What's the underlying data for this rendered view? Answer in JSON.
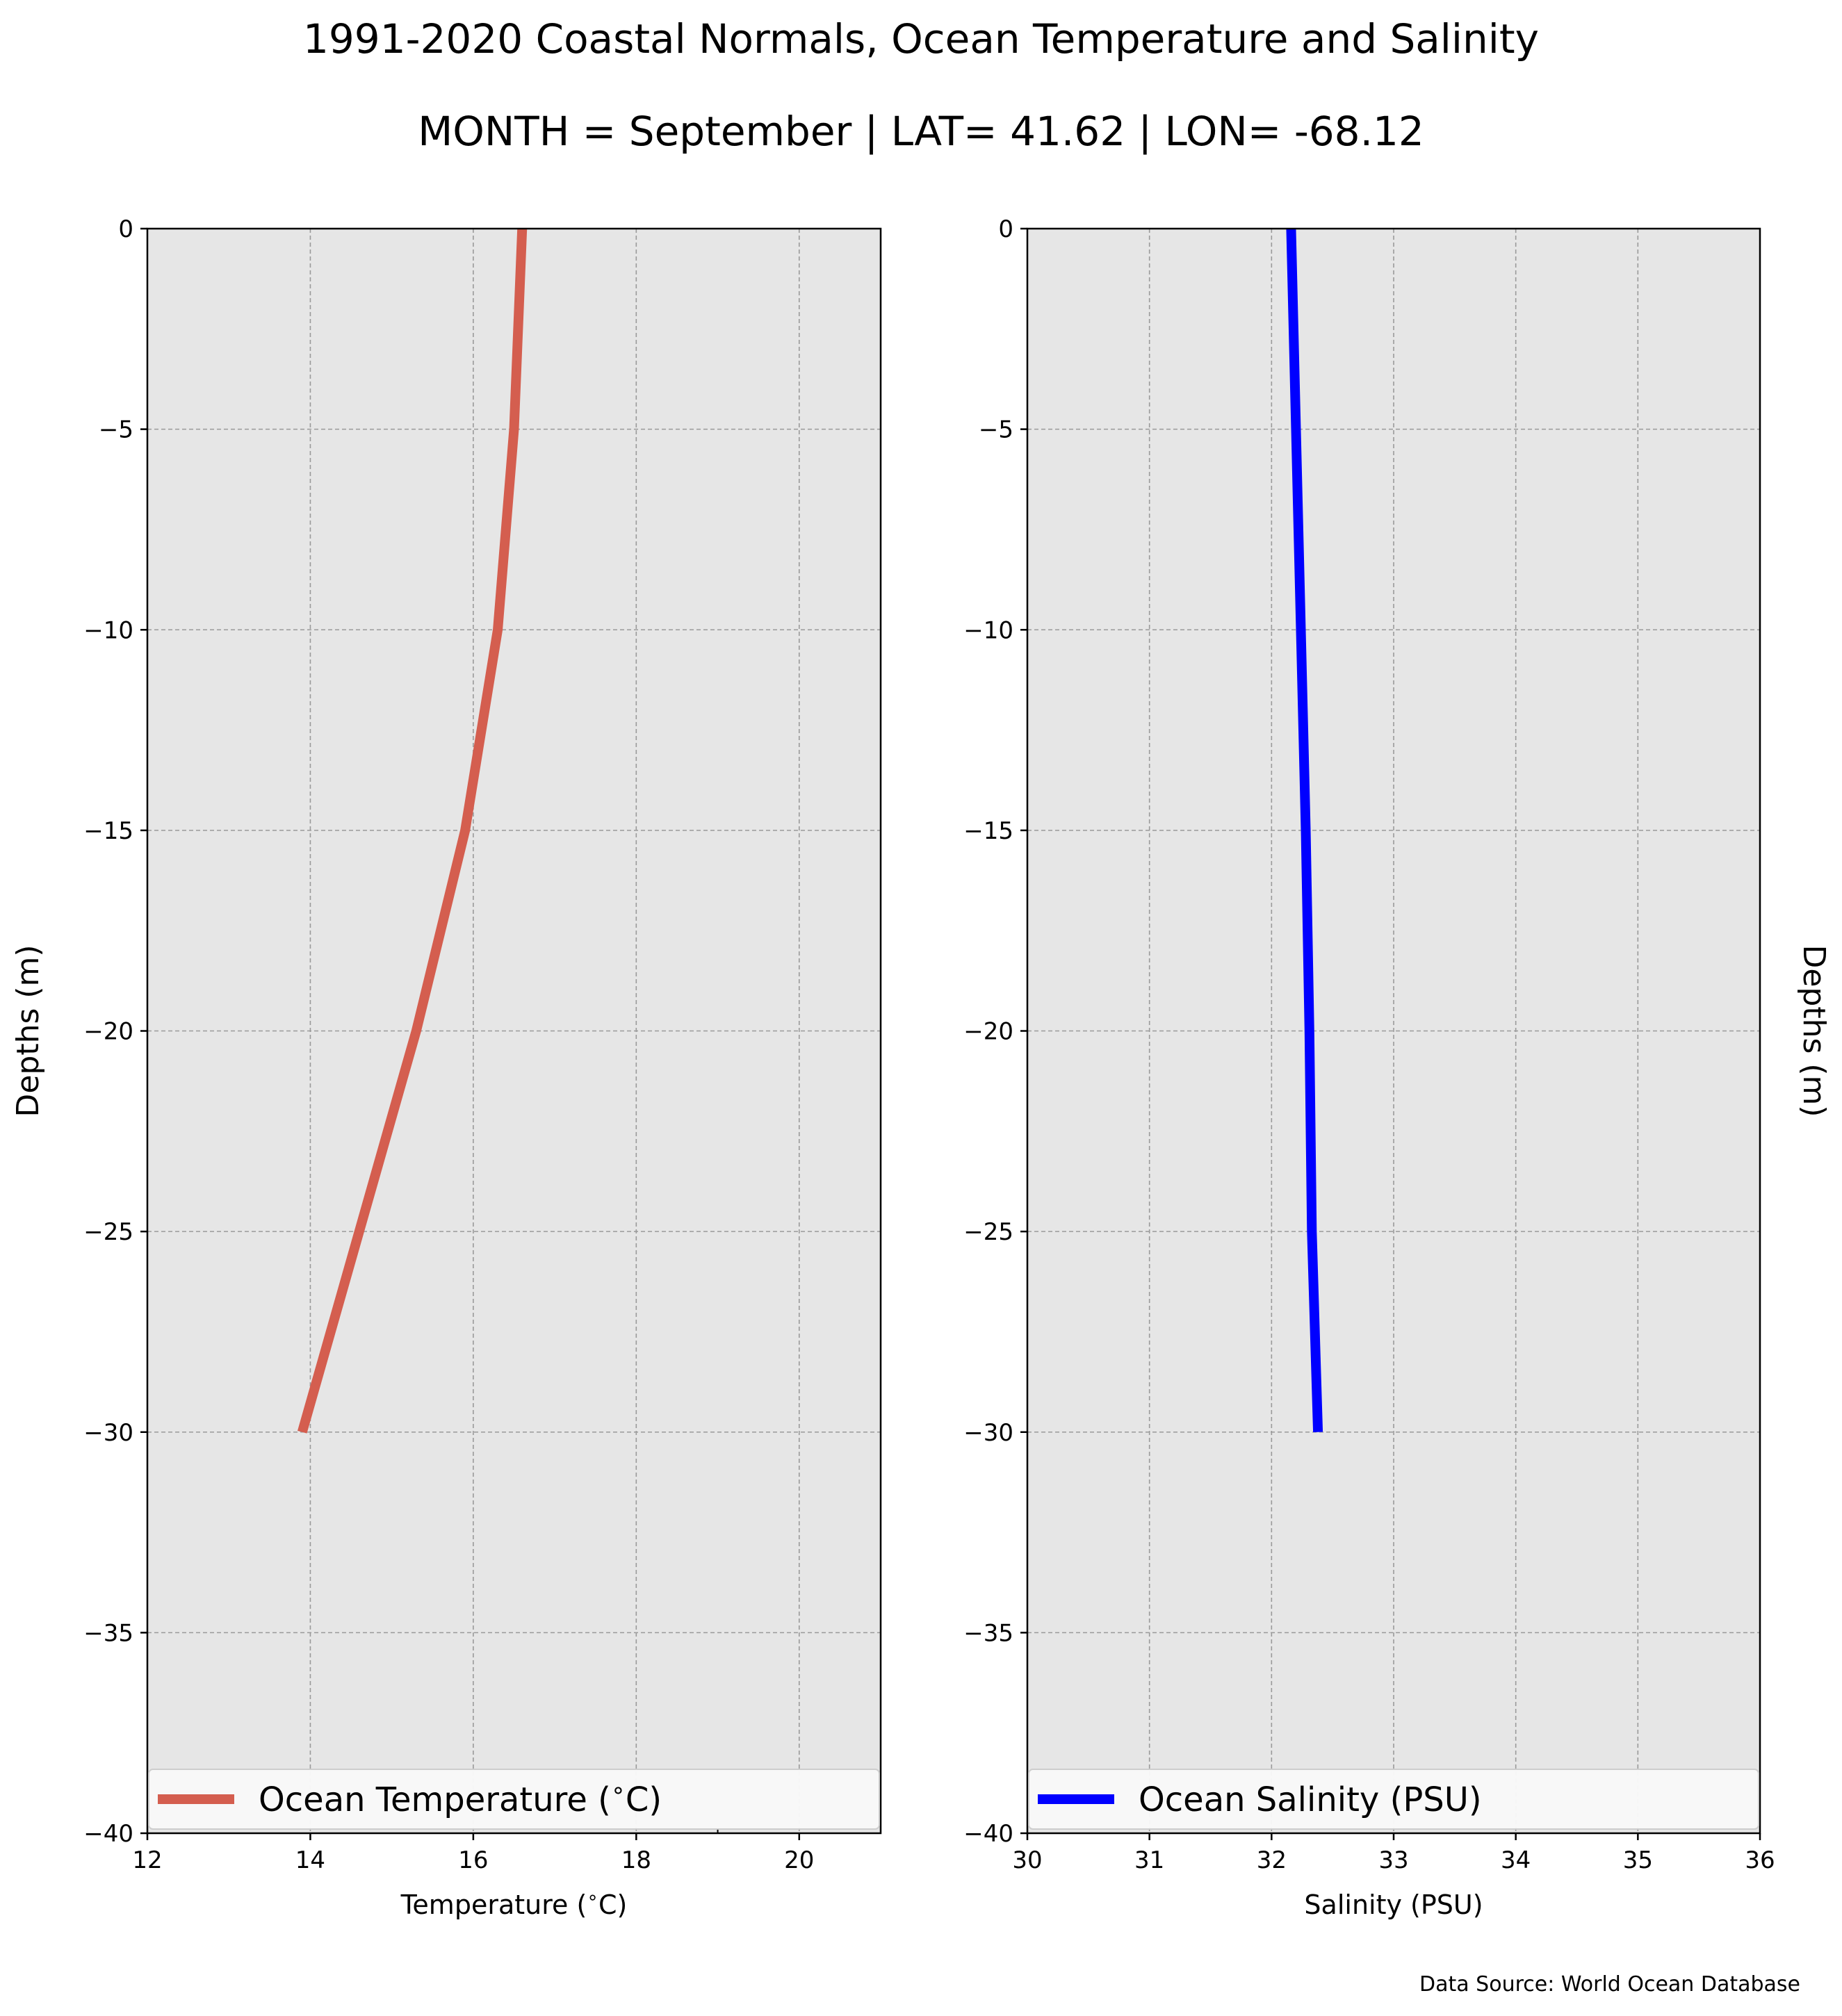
{
  "figure": {
    "title": "1991-2020 Coastal Normals, Ocean Temperature and Salinity",
    "subtitle": "MONTH = September | LAT= 41.62 | LON= -68.12",
    "source": "Data Source: World Ocean Database"
  },
  "colors": {
    "panel_bg": "#e6e6e6",
    "grid": "#9a9a9a",
    "temperature": "#d45e4f",
    "salinity": "#0000ff"
  },
  "chart_data": [
    {
      "type": "line",
      "xlabel": "Temperature ($^\\circ$C)",
      "ylabel": "Depths (m)",
      "ylabel_side": "left",
      "xlim": [
        12,
        21
      ],
      "ylim": [
        -40,
        0
      ],
      "xticks": [
        12,
        14,
        16,
        18,
        20
      ],
      "xtick_labels": [
        "12",
        "14",
        "16",
        "18",
        "20"
      ],
      "yticks": [
        0,
        -5,
        -10,
        -15,
        -20,
        -25,
        -30,
        -35,
        -40
      ],
      "ytick_labels": [
        "0",
        "−5",
        "−10",
        "−15",
        "−20",
        "−25",
        "−30",
        "−35",
        "−40"
      ],
      "grid": true,
      "legend_position": "bottom",
      "series": [
        {
          "name": "Ocean Temperature ($^\\circ$C)",
          "color": "#d45e4f",
          "x": [
            16.6,
            16.5,
            16.3,
            15.9,
            15.3,
            14.6,
            13.9
          ],
          "y": [
            0,
            -5,
            -10,
            -15,
            -20,
            -25,
            -30
          ]
        }
      ]
    },
    {
      "type": "line",
      "xlabel": "Salinity (PSU)",
      "ylabel": "Depths (m)",
      "ylabel_side": "right",
      "xlim": [
        30,
        36
      ],
      "ylim": [
        -40,
        0
      ],
      "xticks": [
        30,
        31,
        32,
        33,
        34,
        35,
        36
      ],
      "xtick_labels": [
        "30",
        "31",
        "32",
        "33",
        "34",
        "35",
        "36"
      ],
      "yticks": [
        0,
        -5,
        -10,
        -15,
        -20,
        -25,
        -30,
        -35,
        -40
      ],
      "ytick_labels": [
        "0",
        "−5",
        "−10",
        "−15",
        "−20",
        "−25",
        "−30",
        "−35",
        "−40"
      ],
      "grid": true,
      "legend_position": "bottom",
      "series": [
        {
          "name": "Ocean Salinity (PSU)",
          "color": "#0000ff",
          "x": [
            32.16,
            32.2,
            32.24,
            32.28,
            32.31,
            32.33,
            32.38
          ],
          "y": [
            0,
            -5,
            -10,
            -15,
            -20,
            -25,
            -30
          ]
        }
      ]
    }
  ]
}
